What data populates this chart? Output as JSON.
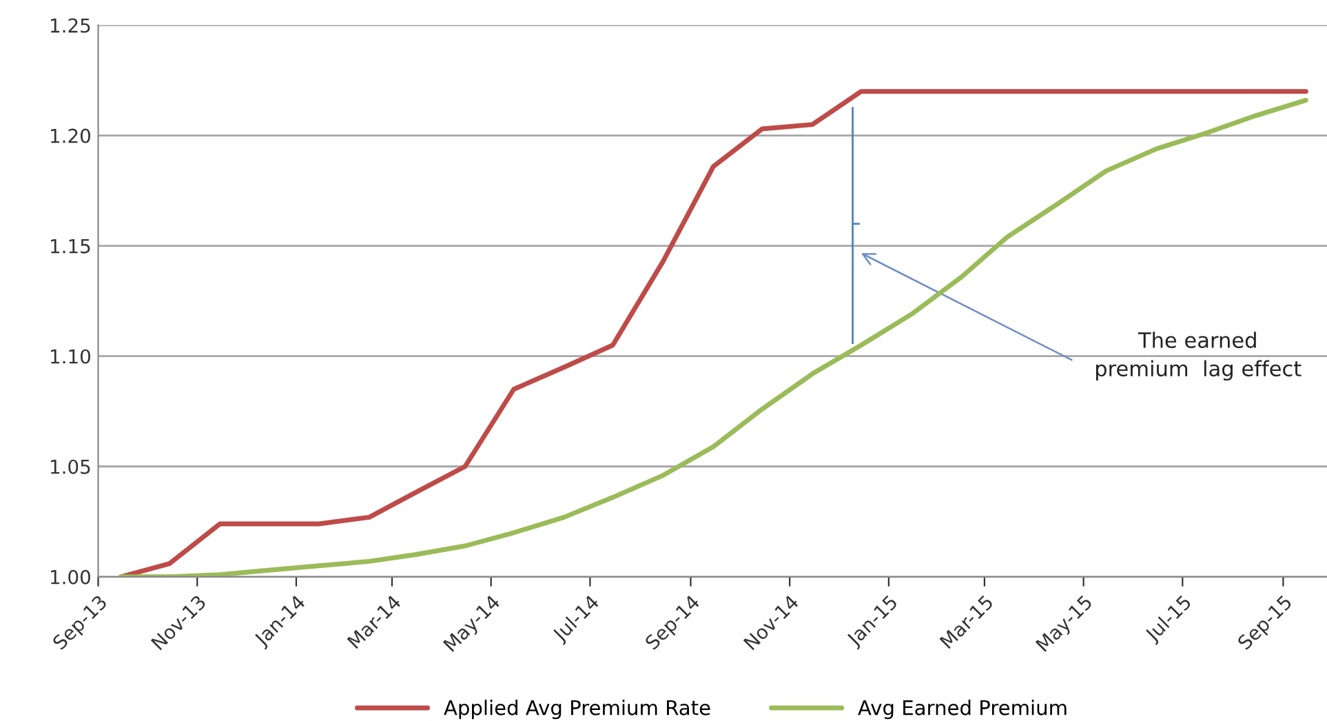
{
  "chart_data": {
    "type": "line",
    "x": [
      "2013-09-15",
      "2013-10-15",
      "2013-11-15",
      "2013-12-15",
      "2014-01-15",
      "2014-02-15",
      "2014-03-15",
      "2014-04-15",
      "2014-05-15",
      "2014-06-15",
      "2014-07-15",
      "2014-08-15",
      "2014-09-15",
      "2014-10-15",
      "2014-11-15",
      "2014-12-15",
      "2015-01-15",
      "2015-02-15",
      "2015-03-15",
      "2015-04-15",
      "2015-05-15",
      "2015-06-15",
      "2015-07-15",
      "2015-08-15",
      "2015-09-15"
    ],
    "series": [
      {
        "name": "Applied Avg Premium Rate",
        "color": "#be4b48",
        "values": [
          1.0,
          1.006,
          1.024,
          1.024,
          1.024,
          1.027,
          1.038,
          1.05,
          1.085,
          1.095,
          1.105,
          1.143,
          1.186,
          1.203,
          1.205,
          1.22,
          1.22,
          1.22,
          1.22,
          1.22,
          1.22,
          1.22,
          1.22,
          1.22,
          1.22
        ]
      },
      {
        "name": "Avg Earned Premium",
        "color": "#9bbb59",
        "values": [
          1.0,
          1.0,
          1.001,
          1.003,
          1.005,
          1.007,
          1.01,
          1.014,
          1.02,
          1.027,
          1.036,
          1.046,
          1.059,
          1.076,
          1.092,
          1.105,
          1.119,
          1.136,
          1.154,
          1.169,
          1.184,
          1.194,
          1.201,
          1.209,
          1.216
        ]
      }
    ],
    "xlim": [
      "2013-09-01",
      "2015-09-28"
    ],
    "xticks": [
      {
        "value": "2013-09-01",
        "label": "Sep-13"
      },
      {
        "value": "2013-11-01",
        "label": "Nov-13"
      },
      {
        "value": "2014-01-01",
        "label": "Jan-14"
      },
      {
        "value": "2014-03-01",
        "label": "Mar-14"
      },
      {
        "value": "2014-05-01",
        "label": "May-14"
      },
      {
        "value": "2014-07-01",
        "label": "Jul-14"
      },
      {
        "value": "2014-09-01",
        "label": "Sep-14"
      },
      {
        "value": "2014-11-01",
        "label": "Nov-14"
      },
      {
        "value": "2015-01-01",
        "label": "Jan-15"
      },
      {
        "value": "2015-03-01",
        "label": "Mar-15"
      },
      {
        "value": "2015-05-01",
        "label": "May-15"
      },
      {
        "value": "2015-07-01",
        "label": "Jul-15"
      },
      {
        "value": "2015-09-01",
        "label": "Sep-15"
      }
    ],
    "ylim": [
      1.0,
      1.25
    ],
    "yticks": [
      {
        "value": 1.0,
        "label": "1.00"
      },
      {
        "value": 1.05,
        "label": "1.05"
      },
      {
        "value": 1.1,
        "label": "1.10"
      },
      {
        "value": 1.15,
        "label": "1.15"
      },
      {
        "value": 1.2,
        "label": "1.20"
      },
      {
        "value": 1.25,
        "label": "1.25"
      }
    ],
    "grid": "y",
    "legend": "bottom",
    "marker": "none",
    "line_style": "solid",
    "annotations": [
      "The earned\npremium  lag effect"
    ]
  }
}
